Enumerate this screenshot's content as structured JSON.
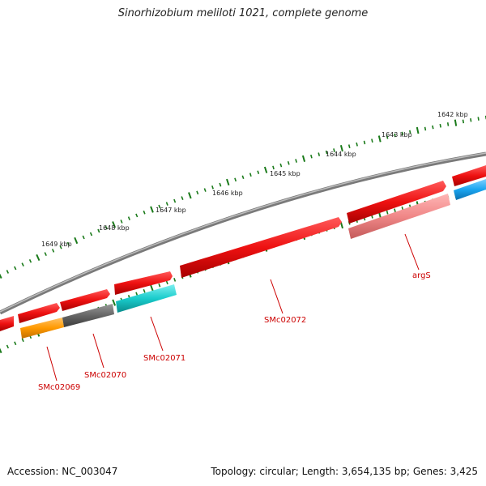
{
  "title": "Sinorhizobium meliloti 1021, complete genome",
  "accession": "Accession: NC_003047",
  "summary": "Topology: circular; Length: 3,654,135 bp; Genes: 3,425",
  "colors": {
    "backbone": "#7a7a7a",
    "tick": "#1a7a1a",
    "gene_forward": "#ee1111",
    "label": "#cc0000",
    "cyan": "#19cccc",
    "gray": "#666666",
    "orange": "#ff9900",
    "pink": "#f08888",
    "blue": "#1aa5f0"
  },
  "ticks": [
    {
      "label": "1642 kbp"
    },
    {
      "label": "1643 kbp"
    },
    {
      "label": "1644 kbp"
    },
    {
      "label": "1645 kbp"
    },
    {
      "label": "1646 kbp"
    },
    {
      "label": "1647 kbp"
    },
    {
      "label": "1648 kbp"
    },
    {
      "label": "1649 kbp"
    }
  ],
  "gene_labels": [
    {
      "name": "argS"
    },
    {
      "name": "SMc02072"
    },
    {
      "name": "SMc02071"
    },
    {
      "name": "SMc02070"
    },
    {
      "name": "SMc02069"
    }
  ]
}
